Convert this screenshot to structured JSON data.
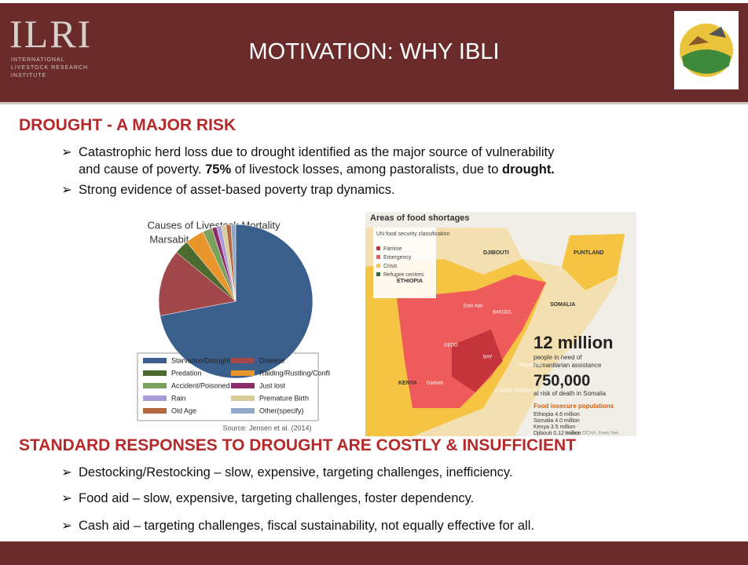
{
  "header": {
    "title": "MOTIVATION: WHY IBLI",
    "logo_text": "ILRI",
    "logo_subtext": [
      "INTERNATIONAL",
      "LIVESTOCK RESEARCH",
      "INSTITUTE"
    ]
  },
  "section1": {
    "heading": "DROUGHT - A MAJOR RISK",
    "bullets": [
      [
        "Catastrophic herd loss due to drought identified as the major source of vulnerability",
        "and cause of poverty. ",
        "75%",
        " of livestock losses, among pastoralists, due to ",
        "drought."
      ],
      [
        "Strong evidence of asset-based poverty trap dynamics."
      ]
    ]
  },
  "chart_data": {
    "type": "pie",
    "title": "Causes of Livestock Mortality",
    "subtitle": "Marsabit, Kenya, 2009-2012",
    "categories": [
      "Starvation/Drought",
      "Disease",
      "Predation",
      "Raiding/Rustling/Conflict",
      "Accident/Poisoned",
      "Just lost",
      "Rain",
      "Premature Birth",
      "Old Age",
      "Other(specify)"
    ],
    "values": [
      72,
      14,
      3,
      4,
      2,
      1,
      1,
      1,
      1,
      1
    ],
    "colors": [
      "#3b5f8c",
      "#a2474a",
      "#4b6a2e",
      "#e8952c",
      "#7ba25c",
      "#8b2b6b",
      "#a99ad8",
      "#d9ca9a",
      "#b2693f",
      "#90a9c9"
    ],
    "legend": true,
    "source": "Source: Jensen et al. (2014)"
  },
  "map": {
    "title": "Areas of food shortages",
    "legend_title": "UN food security classification",
    "legend": [
      "Famine",
      "Emergency",
      "Crisis",
      "Refugee centres"
    ],
    "labels": [
      "DJIBOUTI",
      "ETHIOPIA",
      "PUNTLAND",
      "SOMALIA",
      "KENYA",
      "Dolo Ado",
      "BAKOOL",
      "BAY",
      "Mogadishu",
      "LOWER SHABELLE",
      "Dadaab",
      "GEDO"
    ],
    "stat1": "12 million",
    "stat1_text": [
      "people in need of",
      "humanitarian assistance"
    ],
    "stat2": "750,000",
    "stat2_text": "at risk of death in Somalia",
    "pop_title": "Food insecure populations",
    "pops": [
      "Ethiopia 4.6 million",
      "Somalia 4.0 million",
      "Kenya 3.5 million",
      "Djibouti 0.12 million"
    ],
    "source": "Source: OCHA, Fews Net"
  },
  "section2": {
    "heading": "STANDARD RESPONSES TO DROUGHT ARE COSTLY & INSUFFICIENT",
    "bullets": [
      "Destocking/Restocking – slow, expensive, targeting challenges, inefficiency.",
      "Food aid – slow, expensive, targeting challenges, foster dependency.",
      "Cash aid – targeting challenges, fiscal sustainability, not equally effective for all."
    ]
  }
}
